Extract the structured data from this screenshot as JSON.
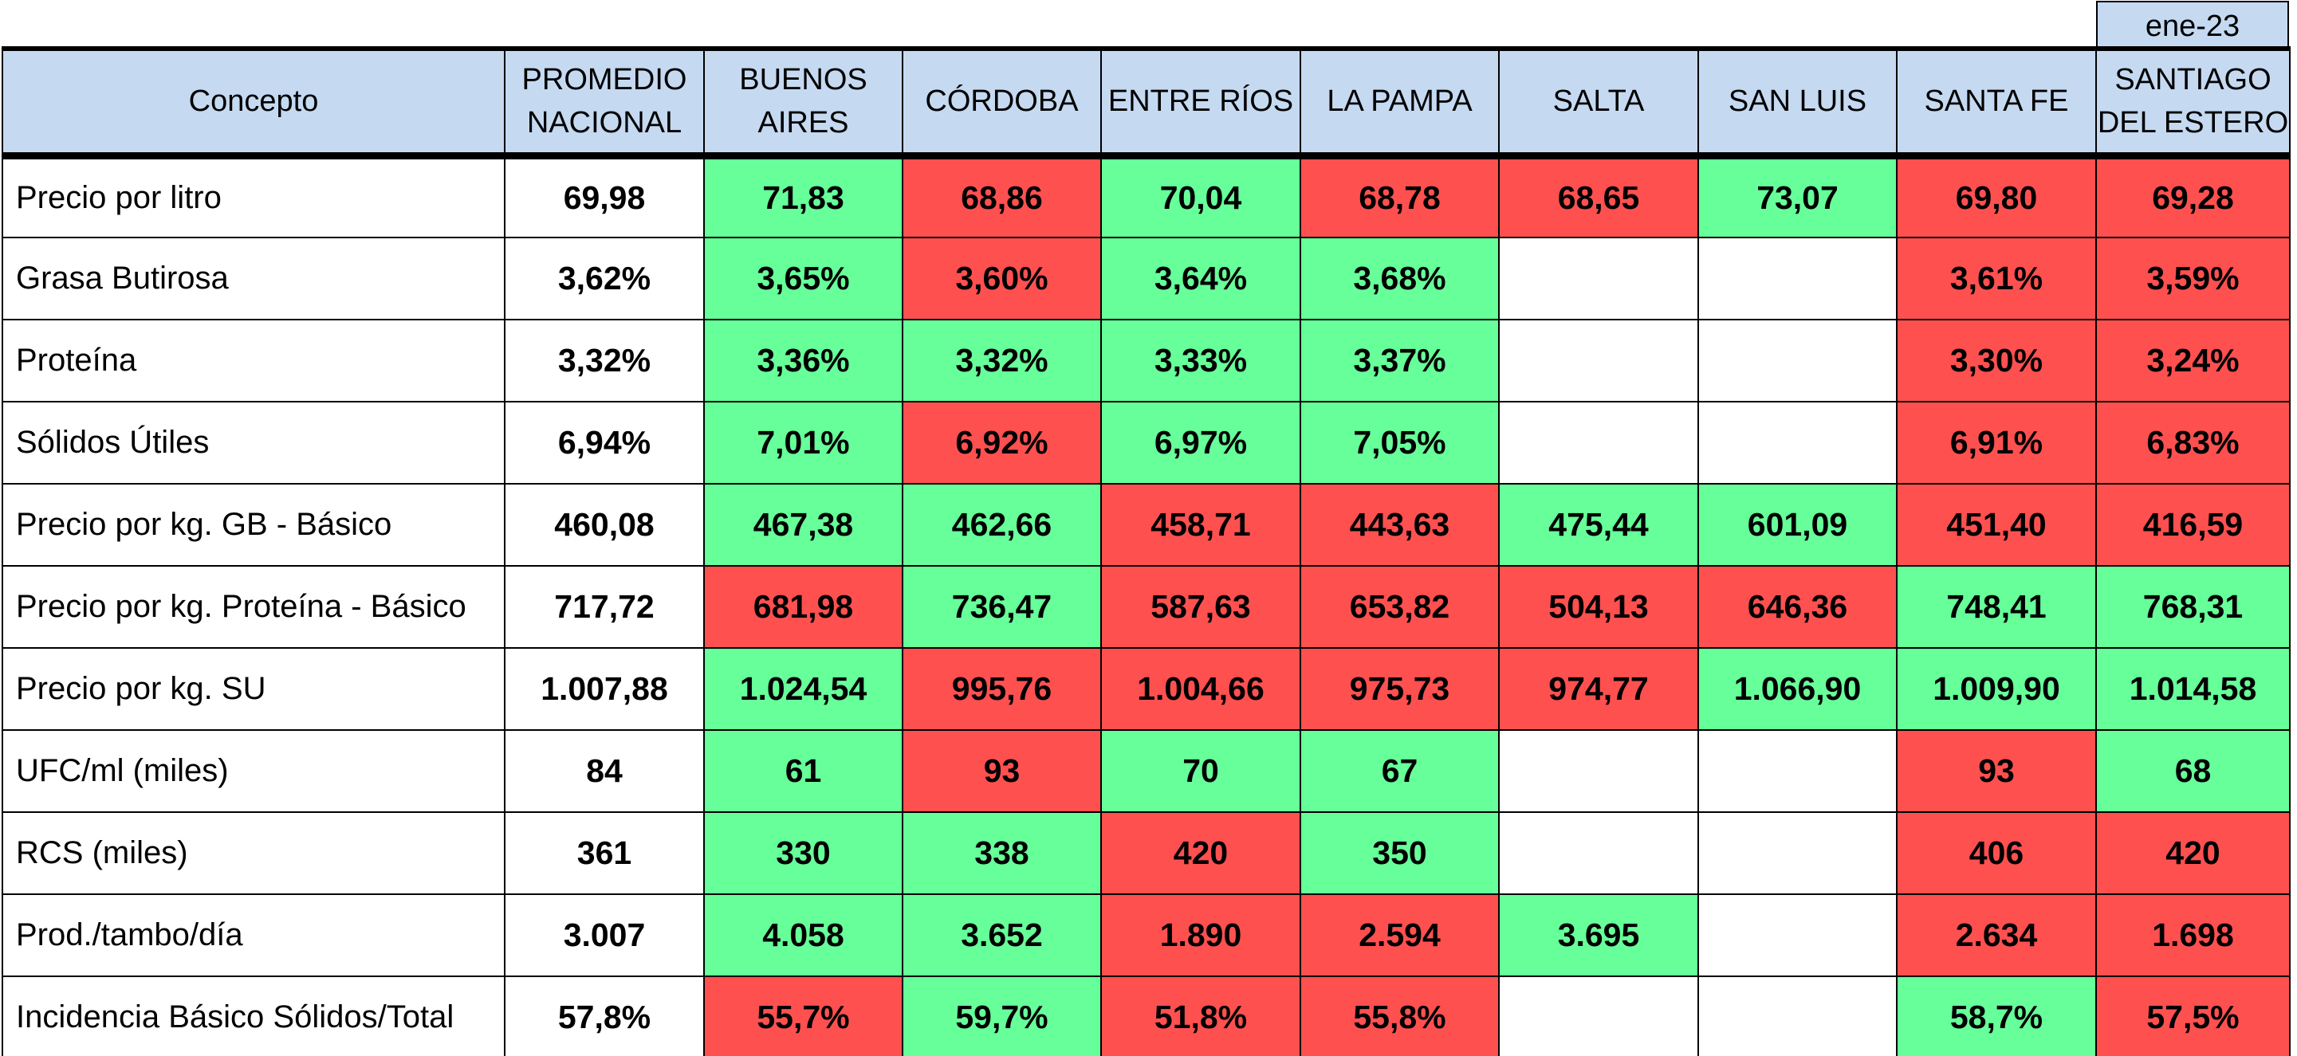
{
  "period_label": "ene-23",
  "colors": {
    "header_bg": "#c5d9f1",
    "above_average": "#66ff99",
    "below_average": "#ff5050",
    "empty": "#ffffff"
  },
  "columns": [
    "Concepto",
    "PROMEDIO NACIONAL",
    "BUENOS AIRES",
    "CÓRDOBA",
    "ENTRE RÍOS",
    "LA PAMPA",
    "SALTA",
    "SAN LUIS",
    "SANTA FE",
    "SANTIAGO DEL ESTERO"
  ],
  "rows": [
    {
      "concept": "Precio por litro",
      "national": "69,98",
      "values": [
        "71,83",
        "68,86",
        "70,04",
        "68,78",
        "68,65",
        "73,07",
        "69,80",
        "69,28"
      ],
      "status": [
        "green",
        "red",
        "green",
        "red",
        "red",
        "green",
        "red",
        "red"
      ]
    },
    {
      "concept": "Grasa Butirosa",
      "national": "3,62%",
      "values": [
        "3,65%",
        "3,60%",
        "3,64%",
        "3,68%",
        "",
        "",
        "3,61%",
        "3,59%"
      ],
      "status": [
        "green",
        "red",
        "green",
        "green",
        "blank",
        "blank",
        "red",
        "red"
      ]
    },
    {
      "concept": "Proteína",
      "national": "3,32%",
      "values": [
        "3,36%",
        "3,32%",
        "3,33%",
        "3,37%",
        "",
        "",
        "3,30%",
        "3,24%"
      ],
      "status": [
        "green",
        "green",
        "green",
        "green",
        "blank",
        "blank",
        "red",
        "red"
      ]
    },
    {
      "concept": "Sólidos Útiles",
      "national": "6,94%",
      "values": [
        "7,01%",
        "6,92%",
        "6,97%",
        "7,05%",
        "",
        "",
        "6,91%",
        "6,83%"
      ],
      "status": [
        "green",
        "red",
        "green",
        "green",
        "blank",
        "blank",
        "red",
        "red"
      ]
    },
    {
      "concept": "Precio por kg. GB - Básico",
      "national": "460,08",
      "values": [
        "467,38",
        "462,66",
        "458,71",
        "443,63",
        "475,44",
        "601,09",
        "451,40",
        "416,59"
      ],
      "status": [
        "green",
        "green",
        "red",
        "red",
        "green",
        "green",
        "red",
        "red"
      ]
    },
    {
      "concept": "Precio por kg. Proteína - Básico",
      "national": "717,72",
      "values": [
        "681,98",
        "736,47",
        "587,63",
        "653,82",
        "504,13",
        "646,36",
        "748,41",
        "768,31"
      ],
      "status": [
        "red",
        "green",
        "red",
        "red",
        "red",
        "red",
        "green",
        "green"
      ]
    },
    {
      "concept": "Precio por kg. SU",
      "national": "1.007,88",
      "values": [
        "1.024,54",
        "995,76",
        "1.004,66",
        "975,73",
        "974,77",
        "1.066,90",
        "1.009,90",
        "1.014,58"
      ],
      "status": [
        "green",
        "red",
        "red",
        "red",
        "red",
        "green",
        "green",
        "green"
      ]
    },
    {
      "concept": "UFC/ml (miles)",
      "national": "84",
      "values": [
        "61",
        "93",
        "70",
        "67",
        "",
        "",
        "93",
        "68"
      ],
      "status": [
        "green",
        "red",
        "green",
        "green",
        "blank",
        "blank",
        "red",
        "green"
      ]
    },
    {
      "concept": "RCS (miles)",
      "national": "361",
      "values": [
        "330",
        "338",
        "420",
        "350",
        "",
        "",
        "406",
        "420"
      ],
      "status": [
        "green",
        "green",
        "red",
        "green",
        "blank",
        "blank",
        "red",
        "red"
      ]
    },
    {
      "concept": "Prod./tambo/día",
      "national": "3.007",
      "values": [
        "4.058",
        "3.652",
        "1.890",
        "2.594",
        "3.695",
        "",
        "2.634",
        "1.698"
      ],
      "status": [
        "green",
        "green",
        "red",
        "red",
        "green",
        "blank",
        "red",
        "red"
      ]
    },
    {
      "concept": "Incidencia Básico Sólidos/Total",
      "national": "57,8%",
      "values": [
        "55,7%",
        "59,7%",
        "51,8%",
        "55,8%",
        "",
        "",
        "58,7%",
        "57,5%"
      ],
      "status": [
        "red",
        "green",
        "red",
        "red",
        "blank",
        "blank",
        "green",
        "red"
      ]
    }
  ]
}
